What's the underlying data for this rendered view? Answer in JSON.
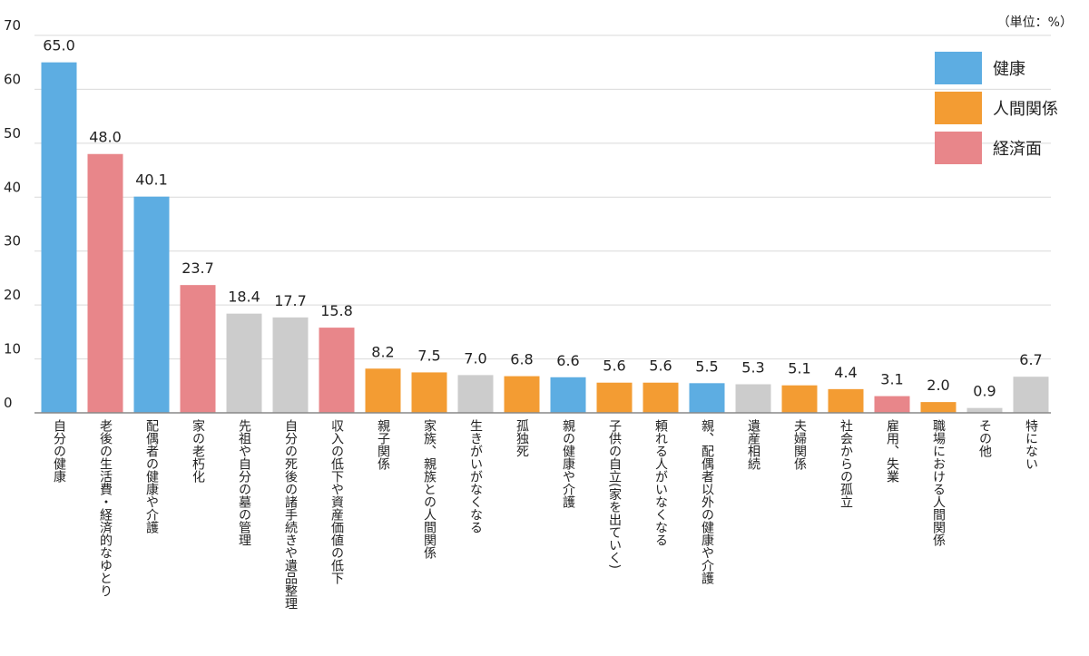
{
  "chart_data": {
    "type": "bar",
    "unit_note": "（単位：%）",
    "ylim": [
      0,
      70
    ],
    "yticks": [
      0,
      10,
      20,
      30,
      40,
      50,
      60,
      70
    ],
    "grid": true,
    "legend_position": "top-right",
    "legend": [
      {
        "key": "health",
        "label": "健康",
        "color": "#5dade2"
      },
      {
        "key": "relations",
        "label": "人間関係",
        "color": "#f39c33"
      },
      {
        "key": "economy",
        "label": "経済面",
        "color": "#e8868a"
      }
    ],
    "other_color": "#cccccc",
    "bars": [
      {
        "label": "自分の健康",
        "value": 65.0,
        "group": "health"
      },
      {
        "label": "老後の生活費・経済的なゆとり",
        "value": 48.0,
        "group": "economy"
      },
      {
        "label": "配偶者の健康や介護",
        "value": 40.1,
        "group": "health"
      },
      {
        "label": "家の老朽化",
        "value": 23.7,
        "group": "economy"
      },
      {
        "label": "先祖や自分の墓の管理",
        "value": 18.4,
        "group": "other"
      },
      {
        "label": "自分の死後の諸手続きや遺品整理",
        "value": 17.7,
        "group": "other"
      },
      {
        "label": "収入の低下や資産価値の低下",
        "value": 15.8,
        "group": "economy"
      },
      {
        "label": "親子関係",
        "value": 8.2,
        "group": "relations"
      },
      {
        "label": "家族、親族との人間関係",
        "value": 7.5,
        "group": "relations"
      },
      {
        "label": "生きがいがなくなる",
        "value": 7.0,
        "group": "other"
      },
      {
        "label": "孤独死",
        "value": 6.8,
        "group": "relations"
      },
      {
        "label": "親の健康や介護",
        "value": 6.6,
        "group": "health"
      },
      {
        "label": "子供の自立(家を出ていく)",
        "value": 5.6,
        "group": "relations"
      },
      {
        "label": "頼れる人がいなくなる",
        "value": 5.6,
        "group": "relations"
      },
      {
        "label": "親、配偶者以外の健康や介護",
        "value": 5.5,
        "group": "health"
      },
      {
        "label": "遺産相続",
        "value": 5.3,
        "group": "other"
      },
      {
        "label": "夫婦関係",
        "value": 5.1,
        "group": "relations"
      },
      {
        "label": "社会からの孤立",
        "value": 4.4,
        "group": "relations"
      },
      {
        "label": "雇用、失業",
        "value": 3.1,
        "group": "economy"
      },
      {
        "label": "職場における人間関係",
        "value": 2.0,
        "group": "relations"
      },
      {
        "label": "その他",
        "value": 0.9,
        "group": "other"
      },
      {
        "label": "特にない",
        "value": 6.7,
        "group": "other"
      }
    ]
  }
}
